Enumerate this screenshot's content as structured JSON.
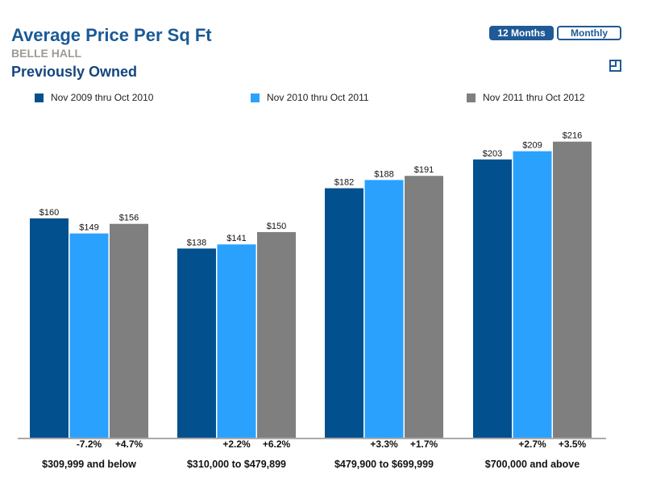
{
  "header": {
    "title": "Average Price Per Sq Ft",
    "subtitle": "BELLE HALL",
    "section": "Previously Owned"
  },
  "controls": {
    "twelve_months": "12 Months",
    "monthly": "Monthly"
  },
  "colors": {
    "series1": "#02508e",
    "series2": "#2ba1fe",
    "series3": "#7f7f7f",
    "title": "#1a5a96"
  },
  "chart_data": {
    "type": "bar",
    "title": "Average Price Per Sq Ft",
    "xlabel": "",
    "ylabel": "",
    "ylim": [
      0,
      237
    ],
    "grid": false,
    "legend": "top",
    "categories": [
      "$309,999 and below",
      "$310,000 to $479,899",
      "$479,900 to $699,999",
      "$700,000 and above"
    ],
    "series": [
      {
        "name": "Nov 2009 thru Oct 2010",
        "values": [
          160,
          138,
          182,
          203
        ],
        "labels": [
          "$160",
          "$138",
          "$182",
          "$203"
        ],
        "changes": [
          "",
          "",
          "",
          ""
        ]
      },
      {
        "name": "Nov 2010 thru Oct 2011",
        "values": [
          149,
          141,
          188,
          209
        ],
        "labels": [
          "$149",
          "$141",
          "$188",
          "$209"
        ],
        "changes": [
          "-7.2%",
          "+2.2%",
          "+3.3%",
          "+2.7%"
        ]
      },
      {
        "name": "Nov 2011 thru Oct 2012",
        "values": [
          156,
          150,
          191,
          216
        ],
        "labels": [
          "$156",
          "$150",
          "$191",
          "$216"
        ],
        "changes": [
          "+4.7%",
          "+6.2%",
          "+1.7%",
          "+3.5%"
        ]
      }
    ]
  }
}
